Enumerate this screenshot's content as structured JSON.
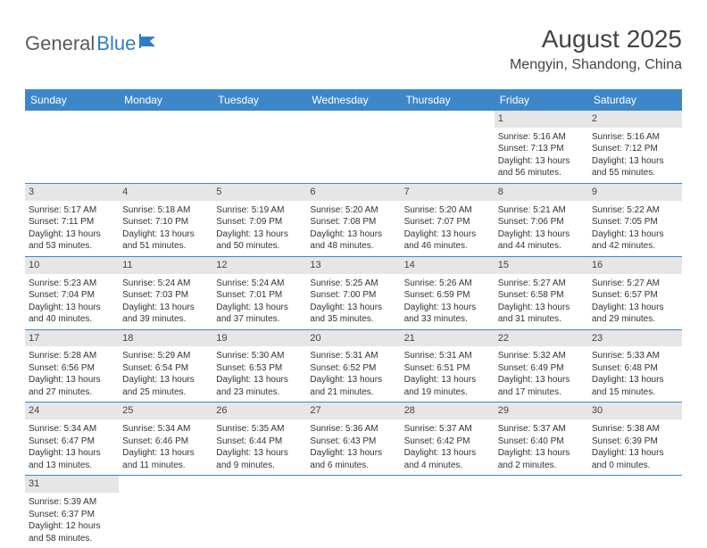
{
  "brand": {
    "part1": "General",
    "part2": "Blue"
  },
  "title": "August 2025",
  "location": "Mengyin, Shandong, China",
  "colors": {
    "header_bg": "#3d87c9",
    "header_text": "#ffffff",
    "daynum_bg": "#e6e6e6",
    "divider": "#3d87c9",
    "text": "#333333",
    "brand_gray": "#5a5a5a",
    "brand_blue": "#2d7fc4"
  },
  "weekdays": [
    "Sunday",
    "Monday",
    "Tuesday",
    "Wednesday",
    "Thursday",
    "Friday",
    "Saturday"
  ],
  "weeks": [
    [
      null,
      null,
      null,
      null,
      null,
      {
        "n": 1,
        "sr": "5:16 AM",
        "ss": "7:13 PM",
        "dl": "13 hours and 56 minutes."
      },
      {
        "n": 2,
        "sr": "5:16 AM",
        "ss": "7:12 PM",
        "dl": "13 hours and 55 minutes."
      }
    ],
    [
      {
        "n": 3,
        "sr": "5:17 AM",
        "ss": "7:11 PM",
        "dl": "13 hours and 53 minutes."
      },
      {
        "n": 4,
        "sr": "5:18 AM",
        "ss": "7:10 PM",
        "dl": "13 hours and 51 minutes."
      },
      {
        "n": 5,
        "sr": "5:19 AM",
        "ss": "7:09 PM",
        "dl": "13 hours and 50 minutes."
      },
      {
        "n": 6,
        "sr": "5:20 AM",
        "ss": "7:08 PM",
        "dl": "13 hours and 48 minutes."
      },
      {
        "n": 7,
        "sr": "5:20 AM",
        "ss": "7:07 PM",
        "dl": "13 hours and 46 minutes."
      },
      {
        "n": 8,
        "sr": "5:21 AM",
        "ss": "7:06 PM",
        "dl": "13 hours and 44 minutes."
      },
      {
        "n": 9,
        "sr": "5:22 AM",
        "ss": "7:05 PM",
        "dl": "13 hours and 42 minutes."
      }
    ],
    [
      {
        "n": 10,
        "sr": "5:23 AM",
        "ss": "7:04 PM",
        "dl": "13 hours and 40 minutes."
      },
      {
        "n": 11,
        "sr": "5:24 AM",
        "ss": "7:03 PM",
        "dl": "13 hours and 39 minutes."
      },
      {
        "n": 12,
        "sr": "5:24 AM",
        "ss": "7:01 PM",
        "dl": "13 hours and 37 minutes."
      },
      {
        "n": 13,
        "sr": "5:25 AM",
        "ss": "7:00 PM",
        "dl": "13 hours and 35 minutes."
      },
      {
        "n": 14,
        "sr": "5:26 AM",
        "ss": "6:59 PM",
        "dl": "13 hours and 33 minutes."
      },
      {
        "n": 15,
        "sr": "5:27 AM",
        "ss": "6:58 PM",
        "dl": "13 hours and 31 minutes."
      },
      {
        "n": 16,
        "sr": "5:27 AM",
        "ss": "6:57 PM",
        "dl": "13 hours and 29 minutes."
      }
    ],
    [
      {
        "n": 17,
        "sr": "5:28 AM",
        "ss": "6:56 PM",
        "dl": "13 hours and 27 minutes."
      },
      {
        "n": 18,
        "sr": "5:29 AM",
        "ss": "6:54 PM",
        "dl": "13 hours and 25 minutes."
      },
      {
        "n": 19,
        "sr": "5:30 AM",
        "ss": "6:53 PM",
        "dl": "13 hours and 23 minutes."
      },
      {
        "n": 20,
        "sr": "5:31 AM",
        "ss": "6:52 PM",
        "dl": "13 hours and 21 minutes."
      },
      {
        "n": 21,
        "sr": "5:31 AM",
        "ss": "6:51 PM",
        "dl": "13 hours and 19 minutes."
      },
      {
        "n": 22,
        "sr": "5:32 AM",
        "ss": "6:49 PM",
        "dl": "13 hours and 17 minutes."
      },
      {
        "n": 23,
        "sr": "5:33 AM",
        "ss": "6:48 PM",
        "dl": "13 hours and 15 minutes."
      }
    ],
    [
      {
        "n": 24,
        "sr": "5:34 AM",
        "ss": "6:47 PM",
        "dl": "13 hours and 13 minutes."
      },
      {
        "n": 25,
        "sr": "5:34 AM",
        "ss": "6:46 PM",
        "dl": "13 hours and 11 minutes."
      },
      {
        "n": 26,
        "sr": "5:35 AM",
        "ss": "6:44 PM",
        "dl": "13 hours and 9 minutes."
      },
      {
        "n": 27,
        "sr": "5:36 AM",
        "ss": "6:43 PM",
        "dl": "13 hours and 6 minutes."
      },
      {
        "n": 28,
        "sr": "5:37 AM",
        "ss": "6:42 PM",
        "dl": "13 hours and 4 minutes."
      },
      {
        "n": 29,
        "sr": "5:37 AM",
        "ss": "6:40 PM",
        "dl": "13 hours and 2 minutes."
      },
      {
        "n": 30,
        "sr": "5:38 AM",
        "ss": "6:39 PM",
        "dl": "13 hours and 0 minutes."
      }
    ],
    [
      {
        "n": 31,
        "sr": "5:39 AM",
        "ss": "6:37 PM",
        "dl": "12 hours and 58 minutes."
      },
      null,
      null,
      null,
      null,
      null,
      null
    ]
  ],
  "labels": {
    "sunrise": "Sunrise: ",
    "sunset": "Sunset: ",
    "daylight": "Daylight: "
  }
}
